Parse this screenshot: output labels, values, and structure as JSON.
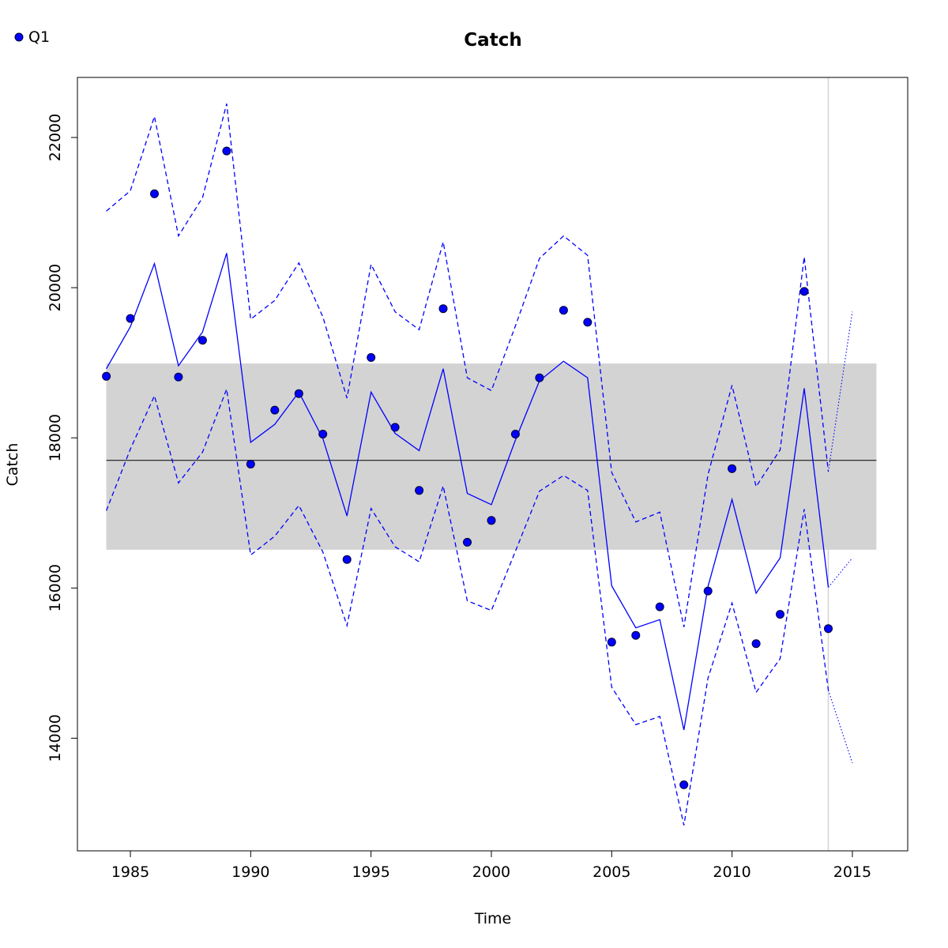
{
  "chart_data": {
    "type": "line",
    "title": "Catch",
    "xlabel": "Time",
    "ylabel": "Catch",
    "xlim": [
      1982.8,
      2017.3
    ],
    "ylim": [
      12500,
      22800
    ],
    "x_ticks": [
      1985,
      1990,
      1995,
      2000,
      2005,
      2010,
      2015
    ],
    "y_ticks": [
      14000,
      16000,
      18000,
      20000,
      22000
    ],
    "grid": false,
    "legend": {
      "position": "top-left",
      "entries": [
        {
          "label": "Q1",
          "color": "#0000ff",
          "marker": "filled-circle"
        }
      ]
    },
    "colors": {
      "series": "#0000ff",
      "band": "#d3d3d3",
      "mean_line": "#000000",
      "vline": "#d3d3d3"
    },
    "mean_band": {
      "x_range": [
        1984,
        2016
      ],
      "lower": 16510,
      "upper": 18990,
      "mean": 17700
    },
    "vertical_line_x": 2014,
    "observed": {
      "name": "Q1",
      "x": [
        1984,
        1985,
        1986,
        1987,
        1988,
        1989,
        1990,
        1991,
        1992,
        1993,
        1994,
        1995,
        1996,
        1997,
        1998,
        1999,
        2000,
        2001,
        2002,
        2003,
        2004,
        2005,
        2006,
        2007,
        2008,
        2009,
        2010,
        2011,
        2012,
        2013,
        2014
      ],
      "y": [
        18820,
        19590,
        21250,
        18810,
        19300,
        21820,
        17650,
        18370,
        18590,
        18050,
        16380,
        19070,
        18140,
        17300,
        19720,
        16610,
        16900,
        18050,
        18800,
        19700,
        19540,
        15280,
        15370,
        15750,
        13380,
        15960,
        17590,
        15260,
        15650,
        19950,
        15460
      ]
    },
    "fitted": {
      "x": [
        1984,
        1985,
        1986,
        1987,
        1988,
        1989,
        1990,
        1991,
        1992,
        1993,
        1994,
        1995,
        1996,
        1997,
        1998,
        1999,
        2000,
        2001,
        2002,
        2003,
        2004,
        2005,
        2006,
        2007,
        2008,
        2009,
        2010,
        2011,
        2012,
        2013,
        2014
      ],
      "y": [
        18920,
        19480,
        20320,
        18960,
        19410,
        20460,
        17940,
        18180,
        18610,
        17990,
        16960,
        18610,
        18060,
        17830,
        18920,
        17260,
        17110,
        17970,
        18760,
        19020,
        18800,
        16030,
        15470,
        15580,
        14110,
        16020,
        17180,
        15930,
        16400,
        18660,
        16010
      ]
    },
    "upper_ci": {
      "x": [
        1984,
        1985,
        1986,
        1987,
        1988,
        1989,
        1990,
        1991,
        1992,
        1993,
        1994,
        1995,
        1996,
        1997,
        1998,
        1999,
        2000,
        2001,
        2002,
        2003,
        2004,
        2005,
        2006,
        2007,
        2008,
        2009,
        2010,
        2011,
        2012,
        2013,
        2014
      ],
      "y": [
        21020,
        21290,
        22280,
        20690,
        21200,
        22450,
        19580,
        19830,
        20330,
        19610,
        18530,
        20310,
        19680,
        19440,
        20610,
        18800,
        18630,
        19490,
        20390,
        20690,
        20430,
        17540,
        16880,
        17010,
        15480,
        17510,
        18700,
        17350,
        17840,
        20410,
        17550
      ]
    },
    "lower_ci": {
      "x": [
        1984,
        1985,
        1986,
        1987,
        1988,
        1989,
        1990,
        1991,
        1992,
        1993,
        1994,
        1995,
        1996,
        1997,
        1998,
        1999,
        2000,
        2001,
        2002,
        2003,
        2004,
        2005,
        2006,
        2007,
        2008,
        2009,
        2010,
        2011,
        2012,
        2013,
        2014
      ],
      "y": [
        17030,
        17850,
        18560,
        17400,
        17810,
        18650,
        16440,
        16690,
        17100,
        16480,
        15500,
        17060,
        16550,
        16350,
        17360,
        15830,
        15700,
        16490,
        17290,
        17500,
        17300,
        14680,
        14180,
        14290,
        12840,
        14800,
        15800,
        14610,
        15060,
        17050,
        14640
      ]
    },
    "forecast": {
      "x": [
        2014,
        2015
      ],
      "mean": [
        16010,
        16400
      ],
      "upper": [
        17550,
        19680
      ],
      "lower": [
        14640,
        13670
      ]
    }
  }
}
